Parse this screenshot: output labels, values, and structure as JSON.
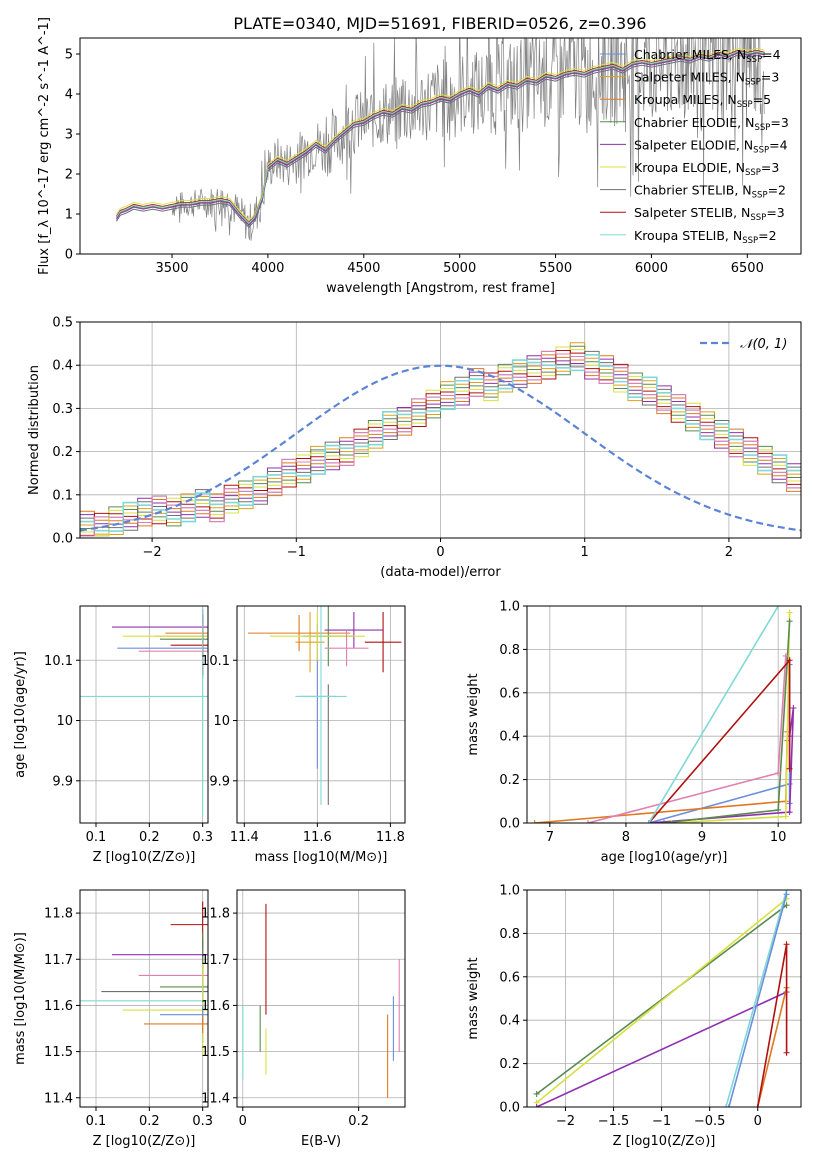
{
  "suptitle": "PLATE=0340, MJD=51691, FIBERID=0526, z=0.396",
  "colors": {
    "Chabrier MILES": "#6a8fdc",
    "Salpeter MILES": "#e0a01a",
    "Kroupa MILES": "#e07820",
    "Chabrier ELODIE": "#5a8a50",
    "Salpeter ELODIE": "#9030b0",
    "Kroupa ELODIE": "#d8e040",
    "Chabrier STELIB": "#707070",
    "Salpeter STELIB": "#b01010",
    "Kroupa STELIB": "#80d8d8",
    "observed": "#808080",
    "pink": "#e080b0",
    "normal": "#5b84d6"
  },
  "chart_data": [
    {
      "type": "line",
      "panel": "spectrum",
      "xlabel": "wavelength [Angstrom, rest frame]",
      "ylabel": "Flux [f_λ 10^-17 erg cm^-2 s^-1 A^-1]",
      "xlim": [
        3020,
        6780
      ],
      "ylim": [
        0,
        5.4
      ],
      "xticks": [
        3500,
        4000,
        4500,
        5000,
        5500,
        6000,
        6500
      ],
      "yticks": [
        0,
        1,
        2,
        3,
        4,
        5
      ],
      "legend": [
        {
          "name": "Chabrier MILES",
          "nssp": "4"
        },
        {
          "name": "Salpeter MILES",
          "nssp": "3"
        },
        {
          "name": "Kroupa MILES",
          "nssp": "5"
        },
        {
          "name": "Chabrier ELODIE",
          "nssp": "3"
        },
        {
          "name": "Salpeter ELODIE",
          "nssp": "4"
        },
        {
          "name": "Kroupa ELODIE",
          "nssp": "3"
        },
        {
          "name": "Chabrier STELIB",
          "nssp": "2"
        },
        {
          "name": "Salpeter STELIB",
          "nssp": "3"
        },
        {
          "name": "Kroupa STELIB",
          "nssp": "2"
        }
      ],
      "legend_placement": "upper right",
      "model_x": [
        3210,
        3230,
        3260,
        3300,
        3350,
        3400,
        3450,
        3500,
        3550,
        3600,
        3650,
        3700,
        3750,
        3800,
        3850,
        3900,
        3930,
        3970,
        4000,
        4050,
        4100,
        4150,
        4200,
        4250,
        4300,
        4350,
        4400,
        4450,
        4500,
        4550,
        4600,
        4650,
        4700,
        4750,
        4800,
        4850,
        4900,
        4950,
        5000,
        5050,
        5100,
        5150,
        5200,
        5250,
        5300,
        5350,
        5400,
        5450,
        5500,
        5550,
        5600,
        5650,
        5700,
        5750,
        5800,
        5850,
        5900,
        5950,
        6000,
        6050,
        6100,
        6150,
        6200,
        6250,
        6300,
        6350,
        6400,
        6450,
        6500,
        6550,
        6590
      ],
      "model_y": [
        0.9,
        1.05,
        1.1,
        1.2,
        1.15,
        1.2,
        1.15,
        1.2,
        1.25,
        1.25,
        1.3,
        1.3,
        1.35,
        1.3,
        1.0,
        0.75,
        0.9,
        1.4,
        2.15,
        2.35,
        2.25,
        2.4,
        2.55,
        2.75,
        2.6,
        2.85,
        3.05,
        3.25,
        3.3,
        3.45,
        3.55,
        3.5,
        3.65,
        3.6,
        3.75,
        3.8,
        3.9,
        3.85,
        4.0,
        4.1,
        4.0,
        4.2,
        4.1,
        4.25,
        4.2,
        4.35,
        4.3,
        4.45,
        4.4,
        4.5,
        4.55,
        4.5,
        4.6,
        4.65,
        4.7,
        4.6,
        4.75,
        4.8,
        4.75,
        4.8,
        4.85,
        4.9,
        4.85,
        4.95,
        4.9,
        5.0,
        4.95,
        5.05,
        5.0,
        5.05,
        5.0
      ]
    },
    {
      "type": "step",
      "panel": "residuals",
      "xlabel": "(data-model)/error",
      "ylabel": "Normed distribution",
      "xlim": [
        -2.5,
        2.5
      ],
      "ylim": [
        0,
        0.5
      ],
      "xticks": [
        -2,
        -1,
        0,
        1,
        2
      ],
      "yticks": [
        0.0,
        0.1,
        0.2,
        0.3,
        0.4,
        0.5
      ],
      "bin_edges_start": -2.5,
      "bin_width": 0.1,
      "base_values": [
        0.03,
        0.025,
        0.04,
        0.05,
        0.06,
        0.065,
        0.06,
        0.07,
        0.08,
        0.07,
        0.09,
        0.1,
        0.11,
        0.13,
        0.15,
        0.16,
        0.18,
        0.19,
        0.2,
        0.22,
        0.24,
        0.26,
        0.27,
        0.29,
        0.31,
        0.33,
        0.34,
        0.36,
        0.35,
        0.37,
        0.38,
        0.39,
        0.4,
        0.41,
        0.42,
        0.4,
        0.39,
        0.37,
        0.35,
        0.34,
        0.32,
        0.3,
        0.28,
        0.26,
        0.24,
        0.22,
        0.2,
        0.18,
        0.16,
        0.14
      ],
      "normal_label": "𝒩(0, 1)",
      "legend_placement": "upper right"
    },
    {
      "type": "errorbar",
      "panel": "age-vs-Z",
      "xlabel": "Z [log10(Z/Z⊙)]",
      "ylabel": "age  [log10(age/yr)]",
      "xlim": [
        0.07,
        0.31
      ],
      "ylim": [
        9.83,
        10.19
      ],
      "xticks": [
        0.1,
        0.2,
        0.3
      ],
      "yticks": [
        9.9,
        10.0,
        10.1
      ],
      "points": [
        {
          "series": "Chabrier MILES",
          "x": 0.3,
          "y": 10.12,
          "xerr": 0.16,
          "yerr": 0.05
        },
        {
          "series": "Salpeter MILES",
          "x": 0.3,
          "y": 10.14,
          "xerr": 0.09,
          "yerr": 0.04
        },
        {
          "series": "Kroupa MILES",
          "x": 0.3,
          "y": 10.145,
          "xerr": 0.07,
          "yerr": 0.03
        },
        {
          "series": "Chabrier ELODIE",
          "x": 0.3,
          "y": 10.135,
          "xerr": 0.08,
          "yerr": 0.03
        },
        {
          "series": "Salpeter ELODIE",
          "x": 0.3,
          "y": 10.155,
          "xerr": 0.17,
          "yerr": 0.03
        },
        {
          "series": "Kroupa ELODIE",
          "x": 0.3,
          "y": 10.14,
          "xerr": 0.15,
          "yerr": 0.02
        },
        {
          "series": "pink",
          "x": 0.3,
          "y": 10.115,
          "xerr": 0.12,
          "yerr": 0.02
        },
        {
          "series": "Salpeter STELIB",
          "x": 0.3,
          "y": 10.125,
          "xerr": 0.06,
          "yerr": 0.05
        },
        {
          "series": "Kroupa STELIB",
          "x": 0.3,
          "y": 10.04,
          "xerr": 0.23,
          "yerr": 0.2
        }
      ]
    },
    {
      "type": "errorbar",
      "panel": "age-vs-mass",
      "xlabel": "mass [log10(M/M⊙)]",
      "ylabel": "",
      "xlim": [
        11.38,
        11.84
      ],
      "ylim": [
        9.83,
        10.19
      ],
      "xticks": [
        11.4,
        11.6,
        11.8
      ],
      "yticks": [
        9.9,
        10.0,
        10.1
      ],
      "points": [
        {
          "series": "Chabrier MILES",
          "x": 11.6,
          "y": 10.04,
          "xerr": 0.05,
          "yerr": 0.12
        },
        {
          "series": "Salpeter MILES",
          "x": 11.58,
          "y": 10.13,
          "xerr": 0.04,
          "yerr": 0.05
        },
        {
          "series": "Kroupa MILES",
          "x": 11.55,
          "y": 10.145,
          "xerr": 0.14,
          "yerr": 0.03
        },
        {
          "series": "Chabrier ELODIE",
          "x": 11.63,
          "y": 10.14,
          "xerr": 0.07,
          "yerr": 0.05
        },
        {
          "series": "Salpeter ELODIE",
          "x": 11.7,
          "y": 10.15,
          "xerr": 0.08,
          "yerr": 0.03
        },
        {
          "series": "Kroupa ELODIE",
          "x": 11.6,
          "y": 10.14,
          "xerr": 0.13,
          "yerr": 0.04
        },
        {
          "series": "Chabrier STELIB",
          "x": 11.63,
          "y": 9.96,
          "xerr": 0.0,
          "yerr": 0.1
        },
        {
          "series": "pink",
          "x": 11.68,
          "y": 10.12,
          "xerr": 0.06,
          "yerr": 0.03
        },
        {
          "series": "Salpeter STELIB",
          "x": 11.78,
          "y": 10.13,
          "xerr": 0.05,
          "yerr": 0.05
        },
        {
          "series": "Kroupa STELIB",
          "x": 11.61,
          "y": 10.04,
          "xerr": 0.07,
          "yerr": 0.18
        }
      ]
    },
    {
      "type": "line",
      "panel": "weight-vs-age",
      "xlabel": "age  [log10(age/yr)]",
      "ylabel": "mass weight",
      "xlim": [
        6.7,
        10.3
      ],
      "ylim": [
        0,
        1
      ],
      "xticks": [
        7,
        8,
        9,
        10
      ],
      "yticks": [
        0.0,
        0.2,
        0.4,
        0.6,
        0.8,
        1.0
      ],
      "series": [
        {
          "name": "Chabrier MILES",
          "x": [
            8.3,
            10.15,
            10.15,
            10.15
          ],
          "y": [
            0.0,
            0.18,
            0.73,
            0.09
          ]
        },
        {
          "name": "Kroupa MILES",
          "x": [
            6.8,
            10.1,
            10.12,
            10.12
          ],
          "y": [
            0.0,
            0.1,
            0.42,
            0.38
          ]
        },
        {
          "name": "Salpeter ELODIE",
          "x": [
            8.3,
            10.15,
            10.2,
            10.15
          ],
          "y": [
            0.0,
            0.05,
            0.53,
            0.4
          ]
        },
        {
          "name": "Kroupa ELODIE",
          "x": [
            8.6,
            10.1,
            10.15
          ],
          "y": [
            0.0,
            0.03,
            0.97
          ]
        },
        {
          "name": "Chabrier ELODIE",
          "x": [
            8.5,
            10.0,
            10.15
          ],
          "y": [
            0.0,
            0.06,
            0.93
          ]
        },
        {
          "name": "pink",
          "x": [
            7.5,
            10.0,
            10.1
          ],
          "y": [
            0.0,
            0.23,
            0.77
          ]
        },
        {
          "name": "Salpeter STELIB",
          "x": [
            8.3,
            10.15,
            10.15
          ],
          "y": [
            0.0,
            0.75,
            0.25
          ]
        },
        {
          "name": "Kroupa STELIB",
          "x": [
            8.3,
            10.0
          ],
          "y": [
            0.0,
            1.0
          ]
        }
      ]
    },
    {
      "type": "errorbar",
      "panel": "mass-vs-Z",
      "xlabel": "Z [log10(Z/Z⊙)]",
      "ylabel": "mass [log10(M/M⊙)]",
      "xlim": [
        0.07,
        0.31
      ],
      "ylim": [
        11.38,
        11.85
      ],
      "xticks": [
        0.1,
        0.2,
        0.3
      ],
      "yticks": [
        11.4,
        11.5,
        11.6,
        11.7,
        11.8
      ],
      "points": [
        {
          "series": "Salpeter STELIB",
          "x": 0.3,
          "y": 11.775,
          "xerr": 0.06,
          "yerr": 0.05
        },
        {
          "series": "Salpeter ELODIE",
          "x": 0.3,
          "y": 11.71,
          "xerr": 0.17,
          "yerr": 0.03
        },
        {
          "series": "pink",
          "x": 0.3,
          "y": 11.665,
          "xerr": 0.12,
          "yerr": 0.03
        },
        {
          "series": "Chabrier ELODIE",
          "x": 0.3,
          "y": 11.64,
          "xerr": 0.08,
          "yerr": 0.12
        },
        {
          "series": "Chabrier STELIB",
          "x": 0.3,
          "y": 11.63,
          "xerr": 0.19,
          "yerr": 0.03
        },
        {
          "series": "Kroupa STELIB",
          "x": 0.3,
          "y": 11.61,
          "xerr": 0.23,
          "yerr": 0.05
        },
        {
          "series": "Kroupa ELODIE",
          "x": 0.3,
          "y": 11.59,
          "xerr": 0.15,
          "yerr": 0.1
        },
        {
          "series": "Chabrier MILES",
          "x": 0.3,
          "y": 11.58,
          "xerr": 0.08,
          "yerr": 0.02
        },
        {
          "series": "Kroupa MILES",
          "x": 0.3,
          "y": 11.56,
          "xerr": 0.11,
          "yerr": 0.02
        }
      ]
    },
    {
      "type": "errorbar",
      "panel": "mass-vs-ebv",
      "xlabel": "E(B-V)",
      "ylabel": "",
      "xlim": [
        -0.01,
        0.28
      ],
      "ylim": [
        11.38,
        11.85
      ],
      "xticks": [
        0.0,
        0.2
      ],
      "yticks": [
        11.4,
        11.5,
        11.6,
        11.7,
        11.8
      ],
      "points": [
        {
          "series": "Kroupa STELIB",
          "x": 0.0,
          "y": 11.52,
          "yerr": 0.08
        },
        {
          "series": "Chabrier ELODIE",
          "x": 0.03,
          "y": 11.55,
          "yerr": 0.05
        },
        {
          "series": "Salpeter STELIB",
          "x": 0.04,
          "y": 11.7,
          "yerr": 0.12
        },
        {
          "series": "Kroupa ELODIE",
          "x": 0.04,
          "y": 11.5,
          "yerr": 0.05
        },
        {
          "series": "Kroupa MILES",
          "x": 0.25,
          "y": 11.49,
          "yerr": 0.09
        },
        {
          "series": "Chabrier MILES",
          "x": 0.26,
          "y": 11.55,
          "yerr": 0.07
        },
        {
          "series": "pink",
          "x": 0.27,
          "y": 11.6,
          "yerr": 0.1
        }
      ]
    },
    {
      "type": "line",
      "panel": "weight-vs-Z",
      "xlabel": "Z [log10(Z/Z⊙)]",
      "ylabel": "mass weight",
      "xlim": [
        -2.4,
        0.45
      ],
      "ylim": [
        0,
        1
      ],
      "xticks": [
        -2.0,
        -1.5,
        -1.0,
        -0.5,
        0.0
      ],
      "yticks": [
        0.0,
        0.2,
        0.4,
        0.6,
        0.8,
        1.0
      ],
      "series": [
        {
          "name": "Chabrier ELODIE",
          "x": [
            -2.3,
            0.3
          ],
          "y": [
            0.06,
            0.93
          ]
        },
        {
          "name": "Kroupa ELODIE",
          "x": [
            -2.3,
            0.3
          ],
          "y": [
            0.02,
            0.96
          ]
        },
        {
          "name": "Salpeter ELODIE",
          "x": [
            -2.3,
            0.3
          ],
          "y": [
            0.0,
            0.53
          ]
        },
        {
          "name": "Kroupa STELIB",
          "x": [
            -0.33,
            0.3
          ],
          "y": [
            0.0,
            1.0
          ]
        },
        {
          "name": "Chabrier MILES",
          "x": [
            -0.3,
            0.3
          ],
          "y": [
            0.0,
            0.98
          ]
        },
        {
          "name": "Kroupa MILES",
          "x": [
            0.0,
            0.3
          ],
          "y": [
            0.0,
            0.55
          ]
        },
        {
          "name": "Salpeter STELIB",
          "x": [
            0.0,
            0.3,
            0.3
          ],
          "y": [
            0.0,
            0.75,
            0.25
          ]
        }
      ]
    }
  ]
}
